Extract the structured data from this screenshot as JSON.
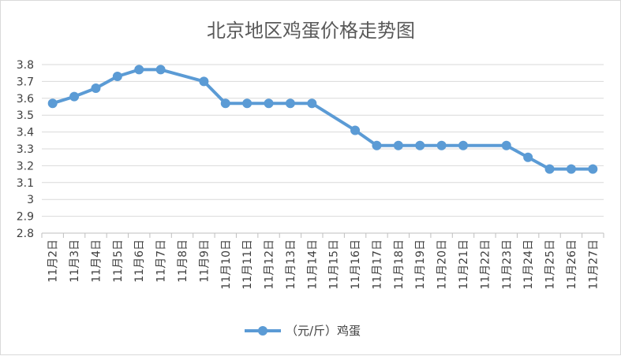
{
  "chart_data": {
    "type": "line",
    "title": "北京地区鸡蛋价格走势图",
    "categories": [
      "11月2日",
      "11月3日",
      "11月4日",
      "11月5日",
      "11月6日",
      "11月7日",
      "11月8日",
      "11月9日",
      "11月10日",
      "11月11日",
      "11月12日",
      "11月13日",
      "11月14日",
      "11月15日",
      "11月16日",
      "11月17日",
      "11月18日",
      "11月19日",
      "11月20日",
      "11月21日",
      "11月22日",
      "11月23日",
      "11月24日",
      "11月25日",
      "11月26日",
      "11月27日"
    ],
    "series": [
      {
        "name": "（元/斤）鸡蛋",
        "color": "#5b9bd5",
        "values": [
          3.57,
          3.61,
          3.66,
          3.73,
          3.77,
          3.77,
          null,
          3.7,
          3.57,
          3.57,
          3.57,
          3.57,
          3.57,
          null,
          3.41,
          3.32,
          3.32,
          3.32,
          3.32,
          3.32,
          null,
          3.32,
          3.25,
          3.18,
          3.18,
          3.18
        ]
      }
    ],
    "ylim": [
      2.8,
      3.8
    ],
    "yticks": [
      "2.8",
      "2.9",
      "3",
      "3.1",
      "3.2",
      "3.3",
      "3.4",
      "3.5",
      "3.6",
      "3.7",
      "3.8"
    ],
    "ytick_values": [
      2.8,
      2.9,
      3.0,
      3.1,
      3.2,
      3.3,
      3.4,
      3.5,
      3.6,
      3.7,
      3.8
    ],
    "grid": true,
    "legend_position": "bottom"
  }
}
